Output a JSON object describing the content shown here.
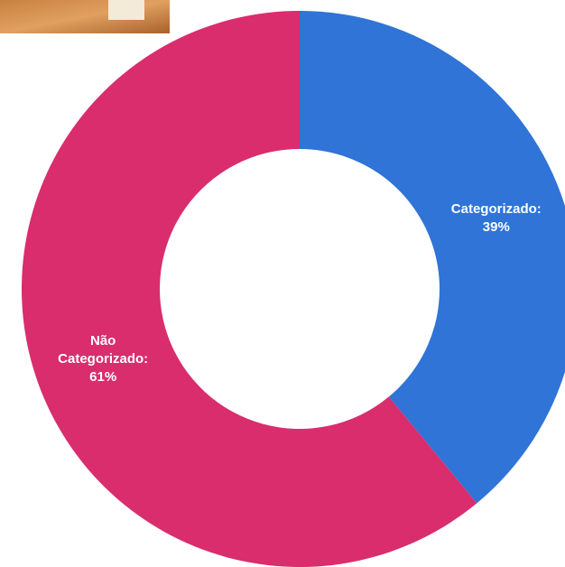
{
  "chart_data": {
    "type": "donut",
    "categories": [
      "Categorizado:",
      "Não Categorizado:"
    ],
    "values": [
      39,
      61
    ],
    "value_labels": [
      "39%",
      "61%"
    ],
    "colors": [
      "#2f74d6",
      "#d92d6e"
    ]
  }
}
